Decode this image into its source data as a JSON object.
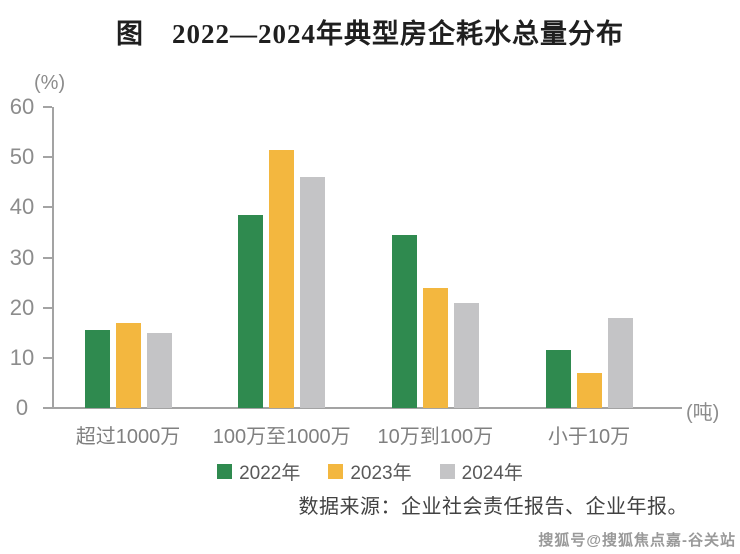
{
  "page": {
    "title": "图　2022—2024年典型房企耗水总量分布",
    "source_note": "数据来源：企业社会责任报告、企业年报。",
    "watermark": "搜狐号@搜狐焦点嘉-谷关站"
  },
  "chart_data": {
    "type": "bar",
    "title": "图 2022—2024年典型房企耗水总量分布",
    "categories": [
      "超过1000万",
      "100万至1000万",
      "10万到100万",
      "小于10万"
    ],
    "series": [
      {
        "name": "2022年",
        "color": "#2F8A4F",
        "values": [
          15.5,
          38.5,
          34.5,
          11.5
        ]
      },
      {
        "name": "2023年",
        "color": "#F3B73F",
        "values": [
          17,
          51.5,
          24,
          7
        ]
      },
      {
        "name": "2024年",
        "color": "#C4C4C6",
        "values": [
          15,
          46,
          21,
          18
        ]
      }
    ],
    "y_axis": {
      "unit": "(%)",
      "min": 0,
      "max": 60,
      "ticks": [
        0,
        10,
        20,
        30,
        40,
        50,
        60
      ]
    },
    "x_axis": {
      "unit": "(吨)"
    },
    "grid": false,
    "legend_position": "bottom"
  }
}
